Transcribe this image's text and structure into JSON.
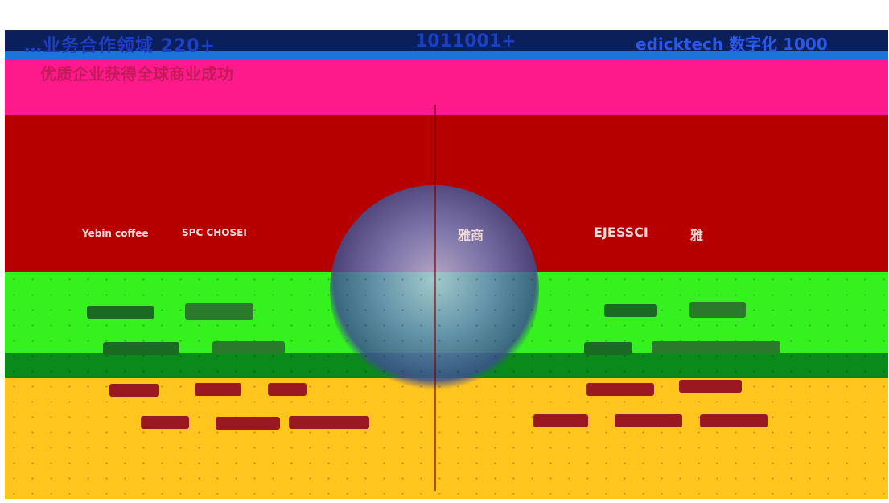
{
  "header": {
    "left_text": "…业务合作领域 220+",
    "mid_text": "1011001+",
    "right_text": "edicktech 数字化 1000"
  },
  "subtitle": "优质企业获得全球商业成功",
  "logos": {
    "row1": [
      {
        "text": "Yebin coffee"
      },
      {
        "text": "SPC CHOSEI"
      },
      {
        "text": "雅商"
      },
      {
        "text": "EJESSCI"
      },
      {
        "text": "雅"
      }
    ]
  },
  "colors": {
    "pink": "#ff1a8c",
    "red": "#b60000",
    "green": "#35f21f",
    "dark_green": "#0a8a1a",
    "yellow": "#ffc51f"
  }
}
